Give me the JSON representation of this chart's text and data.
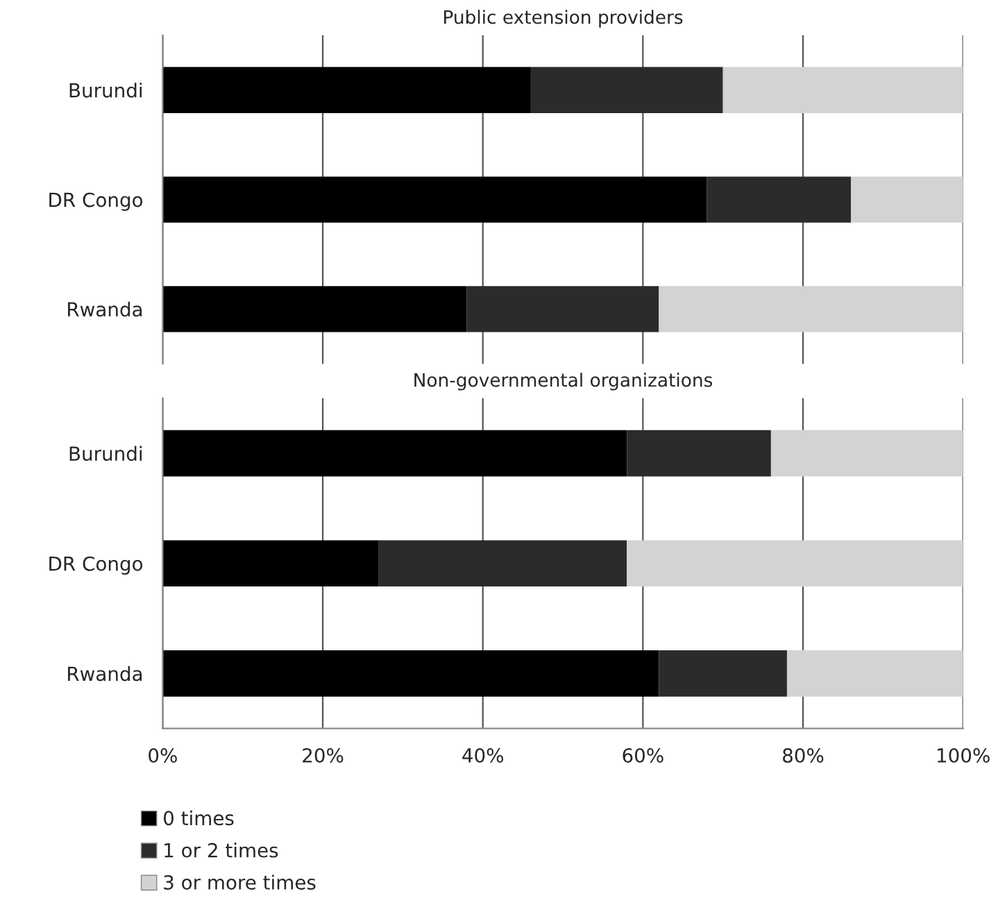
{
  "chart_data": [
    {
      "type": "bar",
      "orientation": "horizontal",
      "stacked": true,
      "title": "Public extension providers",
      "categories": [
        "Burundi",
        "DR Congo",
        "Rwanda"
      ],
      "series": [
        {
          "color": "#000000",
          "values": [
            46,
            68,
            38
          ]
        },
        {
          "color": "#2b2b2b",
          "values": [
            24,
            18,
            24
          ]
        },
        {
          "color": "#d3d3d3",
          "values": [
            30,
            14,
            38
          ]
        }
      ],
      "xlim": [
        0,
        100
      ],
      "xticks": [
        0,
        20,
        40,
        60,
        80,
        100
      ],
      "grid": "x",
      "tick_labels": "y"
    },
    {
      "type": "bar",
      "orientation": "horizontal",
      "stacked": true,
      "title": "Non-governmental organizations",
      "categories": [
        "Burundi",
        "DR Congo",
        "Rwanda"
      ],
      "series": [
        {
          "name": "0 times",
          "color": "#000000",
          "values": [
            58,
            27,
            62
          ]
        },
        {
          "name": "1 or 2 times",
          "color": "#2b2b2b",
          "values": [
            18,
            31,
            16
          ]
        },
        {
          "name": "3 or more times",
          "color": "#d3d3d3",
          "values": [
            24,
            42,
            22
          ]
        }
      ],
      "xlim": [
        0,
        100
      ],
      "xticks": [
        {
          "value": 0,
          "label": "0%"
        },
        {
          "value": 20,
          "label": "20%"
        },
        {
          "value": 40,
          "label": "40%"
        },
        {
          "value": 60,
          "label": "60%"
        },
        {
          "value": 80,
          "label": "80%"
        },
        {
          "value": 100,
          "label": "100%"
        }
      ],
      "grid": "x",
      "legend": "bottom left"
    }
  ]
}
